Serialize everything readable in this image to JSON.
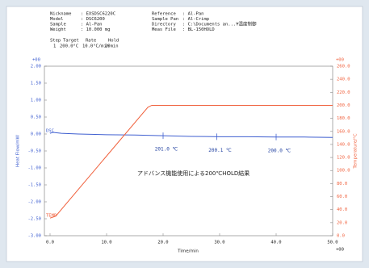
{
  "chart_data": {
    "type": "line",
    "header": {
      "left": [
        [
          "Nickname",
          ": EXSDSC6220C"
        ],
        [
          "Model",
          ": DSC6200"
        ],
        [
          "Sample",
          ": Al-Pan"
        ],
        [
          "Weight",
          ": 10.000 mg"
        ]
      ],
      "right": [
        [
          "Reference",
          ": Al-Pan"
        ],
        [
          "Sample Pan",
          ": Al-Crimp"
        ],
        [
          "Directory",
          ": C:\\Documents an...¥温度制御"
        ],
        [
          "Meas File",
          ": BL-150HOLD"
        ]
      ],
      "program_header": [
        "Step",
        "Target",
        "Rate",
        "Hold"
      ],
      "program_row": [
        "1",
        "200.0°C",
        "10.0°C/min",
        "20min"
      ]
    },
    "annotation": "アドバンス機能使用による200℃HOLD結果",
    "y_label": "Heat Flow/mW",
    "y2_label": "Temperature/°C",
    "x_label": "Time/min",
    "y_exponent": "+00",
    "y2_exponent": "+00",
    "x_exponent": "+00",
    "xlim": [
      -1,
      50
    ],
    "xticks": [
      {
        "value": 0,
        "label": "0.0"
      },
      {
        "value": 10,
        "label": "10.0"
      },
      {
        "value": 20,
        "label": "20.0"
      },
      {
        "value": 30,
        "label": "30.0"
      },
      {
        "value": 40,
        "label": "40.0"
      },
      {
        "value": 50,
        "label": "50.0"
      }
    ],
    "ylim": [
      -3,
      2
    ],
    "yticks": [
      {
        "value": 2,
        "label": "2.00"
      },
      {
        "value": 1.5,
        "label": "1.50"
      },
      {
        "value": 1,
        "label": "1.00"
      },
      {
        "value": 0.5,
        "label": "0.50"
      },
      {
        "value": 0,
        "label": "0.00"
      },
      {
        "value": -0.5,
        "label": "-0.50"
      },
      {
        "value": -1,
        "label": "-1.00"
      },
      {
        "value": -1.5,
        "label": "-1.50"
      },
      {
        "value": -2,
        "label": "-2.00"
      },
      {
        "value": -2.5,
        "label": "-2.50"
      },
      {
        "value": -3,
        "label": "-3.00"
      }
    ],
    "y2lim": [
      0,
      260
    ],
    "y2ticks": [
      {
        "value": 260,
        "label": "260.0"
      },
      {
        "value": 240,
        "label": "240.0"
      },
      {
        "value": 220,
        "label": "220.0"
      },
      {
        "value": 200,
        "label": "200.0"
      },
      {
        "value": 180,
        "label": "180.0"
      },
      {
        "value": 160,
        "label": "160.0"
      },
      {
        "value": 140,
        "label": "140.0"
      },
      {
        "value": 120,
        "label": "120.0"
      },
      {
        "value": 100,
        "label": "100.0"
      },
      {
        "value": 80,
        "label": "80.0"
      },
      {
        "value": 60,
        "label": "60.0"
      },
      {
        "value": 40,
        "label": "40.0"
      },
      {
        "value": 20,
        "label": "20.0"
      },
      {
        "value": 0,
        "label": "0.0"
      }
    ],
    "series": [
      {
        "name": "DSC",
        "color": "#3f5fd0",
        "x": [
          0,
          0.5,
          1,
          2,
          5,
          10,
          15,
          20,
          25,
          30,
          35,
          40,
          45,
          50
        ],
        "values": [
          0.02,
          0.05,
          0.04,
          0.02,
          0,
          -0.02,
          -0.03,
          -0.05,
          -0.07,
          -0.08,
          -0.08,
          -0.09,
          -0.09,
          -0.1
        ]
      },
      {
        "name": "TEMP",
        "color": "#f0603c",
        "axis": "y2",
        "x": [
          0,
          1,
          17.3,
          18,
          20,
          30,
          40,
          50
        ],
        "values": [
          27,
          30,
          197,
          200,
          200,
          200,
          200,
          200
        ]
      }
    ],
    "markers": [
      {
        "x": 20,
        "value": -0.05,
        "label": "201.0 ℃"
      },
      {
        "x": 29.5,
        "value": -0.08,
        "label": "200.1 ℃"
      },
      {
        "x": 40,
        "value": -0.09,
        "label": "200.0 ℃"
      }
    ]
  }
}
